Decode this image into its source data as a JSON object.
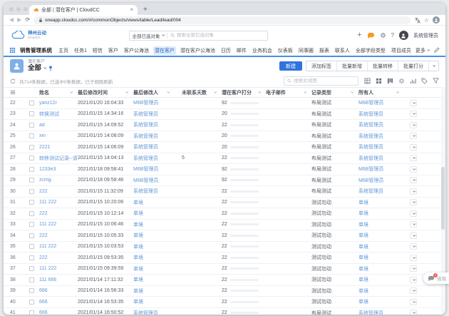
{
  "browser": {
    "tab_title": "全部 | 潜在客户 | CloudCC",
    "url": "oneapp.cloudcc.com/#/commonObjects/views/table/Lead/lead/004"
  },
  "header": {
    "brand": "神州云动",
    "brand_sub": "CloudCC",
    "search_scope": "全部已选对象",
    "search_placeholder": "搜索全部已选对象",
    "help": "?",
    "user_name": "系统管理员"
  },
  "nav": {
    "app_title": "销售管理系统",
    "items": [
      "主页",
      "任务1",
      "短信",
      "客户",
      "客户公海池",
      "潜在客户",
      "潜在客户公海池",
      "日历",
      "邮件",
      "业务机会",
      "仪表板",
      "同事圈",
      "报表",
      "联系人",
      "全部字段类型",
      "项目成员"
    ],
    "active": "潜在客户",
    "more_label": "更多"
  },
  "view": {
    "object_label": "潜在客户",
    "view_name": "全部",
    "primary_button": "新建",
    "group_buttons": [
      "添加标签",
      "批量新增",
      "批量转移",
      "批量打分"
    ],
    "summary": "共714条数据，已选中0条数据，已于刚刚刷新",
    "search_placeholder": "搜索此视图",
    "toolbar_icons": [
      "table-view-icon",
      "card-view-icon",
      "kanban-view-icon",
      "gear-icon",
      "chart-icon",
      "tag-icon",
      "filter-icon"
    ]
  },
  "table": {
    "columns": [
      "姓名",
      "最后修改时间",
      "最后修改人",
      "未联系天数",
      "潜在客户打分",
      "电子邮件",
      "记录类型",
      "所有人"
    ],
    "rows": [
      {
        "num": "22",
        "name": "yanz12r",
        "time": "2021/01/20 16:04:33",
        "modifier": "M6B管理员",
        "days": "",
        "score": 92,
        "score_color": "red",
        "email": "",
        "record_type": "布局测试",
        "owner": "M6B管理员"
      },
      {
        "num": "23",
        "name": "转换测试",
        "time": "2021/01/15 14:34:16",
        "modifier": "系统管理员",
        "days": "",
        "score": 20,
        "score_color": "blue",
        "email": "",
        "record_type": "布局测试",
        "owner": "系统管理员"
      },
      {
        "num": "24",
        "name": "ad",
        "time": "2021/01/15 14:09:52",
        "modifier": "系统管理员",
        "days": "",
        "score": 22,
        "score_color": "yellow",
        "email": "",
        "record_type": "布局测试",
        "owner": "系统管理员"
      },
      {
        "num": "25",
        "name": "xin",
        "time": "2021/01/15 14:08:09",
        "modifier": "系统管理员",
        "days": "",
        "score": 20,
        "score_color": "blue",
        "email": "",
        "record_type": "布局测试",
        "owner": "系统管理员"
      },
      {
        "num": "26",
        "name": "2221",
        "time": "2021/01/15 14:06:09",
        "modifier": "系统管理员",
        "days": "",
        "score": 20,
        "score_color": "blue",
        "email": "",
        "record_type": "布局测试",
        "owner": "系统管理员"
      },
      {
        "num": "27",
        "name": "转移测试记录--请勿修改",
        "time": "2021/01/15 14:04:13",
        "modifier": "系统管理员",
        "days": "5",
        "score": 22,
        "score_color": "yellow",
        "email": "",
        "record_type": "布局测试",
        "owner": "系统管理员"
      },
      {
        "num": "28",
        "name": "1233e3",
        "time": "2021/01/18 09:58:41",
        "modifier": "M6B管理员",
        "days": "",
        "score": 92,
        "score_color": "red",
        "email": "",
        "record_type": "布局测试",
        "owner": "M6B管理员"
      },
      {
        "num": "29",
        "name": "zcmg",
        "time": "2021/01/18 09:58:46",
        "modifier": "M6B管理员",
        "days": "",
        "score": 92,
        "score_color": "red",
        "email": "",
        "record_type": "布局测试",
        "owner": "M6B管理员"
      },
      {
        "num": "30",
        "name": "222",
        "time": "2021/01/15 11:32:09",
        "modifier": "系统管理员",
        "days": "",
        "score": 22,
        "score_color": "yellow",
        "email": "",
        "record_type": "布局测试",
        "owner": "系统管理员"
      },
      {
        "num": "31",
        "name": "111 222",
        "time": "2021/01/15 10:20:06",
        "modifier": "单境",
        "days": "",
        "score": 22,
        "score_color": "yellow",
        "email": "",
        "record_type": "测试勿动",
        "owner": "单境"
      },
      {
        "num": "32",
        "name": "222",
        "time": "2021/01/15 10:12:14",
        "modifier": "单境",
        "days": "",
        "score": 22,
        "score_color": "yellow",
        "email": "",
        "record_type": "测试勿动",
        "owner": "单境"
      },
      {
        "num": "33",
        "name": "111 222",
        "time": "2021/01/15 10:06:46",
        "modifier": "单境",
        "days": "",
        "score": 22,
        "score_color": "yellow",
        "email": "",
        "record_type": "测试勿动",
        "owner": "单境"
      },
      {
        "num": "34",
        "name": "222",
        "time": "2021/01/15 10:05:33",
        "modifier": "单境",
        "days": "",
        "score": 22,
        "score_color": "yellow",
        "email": "",
        "record_type": "测试勿动",
        "owner": "单境"
      },
      {
        "num": "35",
        "name": "111 222",
        "time": "2021/01/15 10:03:53",
        "modifier": "单境",
        "days": "",
        "score": 22,
        "score_color": "yellow",
        "email": "",
        "record_type": "测试勿动",
        "owner": "单境"
      },
      {
        "num": "36",
        "name": "222",
        "time": "2021/01/15 09:53:35",
        "modifier": "单境",
        "days": "",
        "score": 22,
        "score_color": "yellow",
        "email": "",
        "record_type": "测试勿动",
        "owner": "单境"
      },
      {
        "num": "37",
        "name": "111 222",
        "time": "2021/01/15 09:39:59",
        "modifier": "单境",
        "days": "",
        "score": 22,
        "score_color": "yellow",
        "email": "",
        "record_type": "测试勿动",
        "owner": "单境"
      },
      {
        "num": "38",
        "name": "111 666",
        "time": "2021/01/14 17:11:32",
        "modifier": "单境",
        "days": "",
        "score": 22,
        "score_color": "yellow",
        "email": "",
        "record_type": "测试勿动",
        "owner": "单境"
      },
      {
        "num": "39",
        "name": "666",
        "time": "2021/01/14 16:56:33",
        "modifier": "单境",
        "days": "",
        "score": 22,
        "score_color": "yellow",
        "email": "",
        "record_type": "测试勿动",
        "owner": "单境"
      },
      {
        "num": "40",
        "name": "666",
        "time": "2021/01/14 16:53:35",
        "modifier": "单境",
        "days": "",
        "score": 22,
        "score_color": "yellow",
        "email": "",
        "record_type": "测试勿动",
        "owner": "单境"
      },
      {
        "num": "41",
        "name": "666",
        "time": "2021/01/14 16:50:52",
        "modifier": "系统管理员",
        "days": "",
        "score": 22,
        "score_color": "yellow",
        "email": "",
        "record_type": "布局测试",
        "owner": "系统管理员"
      }
    ]
  },
  "widget": {
    "badge": "1",
    "label": "咨询"
  },
  "colors": {
    "primary": "#3173DE",
    "nav_underline": "#4A8FE2",
    "link": "#5F97D8",
    "active_nav_bg": "#DCEBFA",
    "brand_orange": "#F59A23",
    "score": {
      "red": "#F0806A",
      "yellow": "#F5C878",
      "blue": "#4E8FE8"
    }
  }
}
